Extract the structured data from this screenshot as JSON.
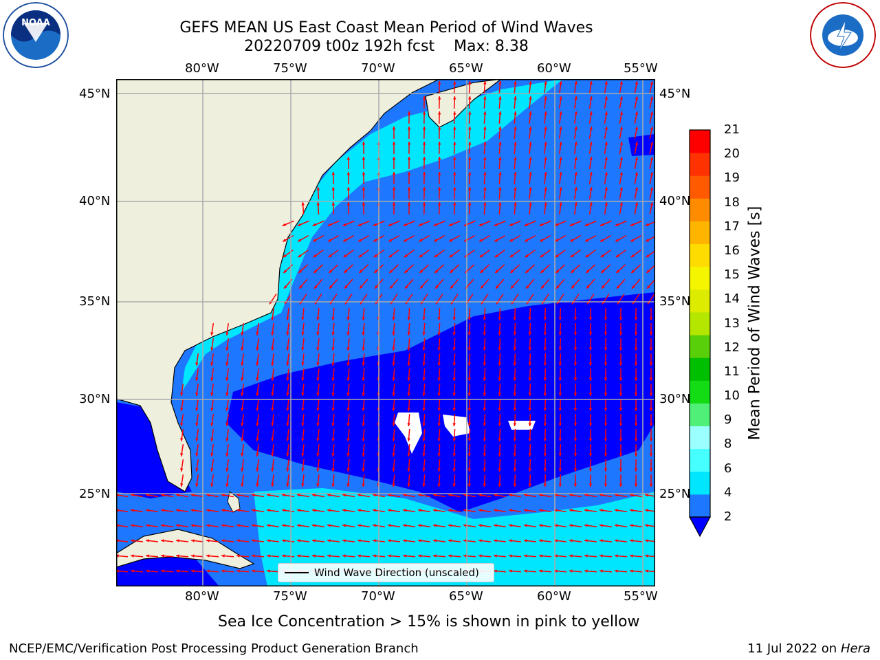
{
  "title": {
    "line1": "GEFS MEAN US East Coast Mean Period of Wind Waves",
    "line2": "20220709 t00z 192h fcst    Max: 8.38"
  },
  "logos": {
    "left_text": "NOAA",
    "right_text": "NATIONAL WEATHER SERVICE",
    "left_icon": "noaa-logo-icon",
    "right_icon": "nws-logo-icon"
  },
  "map": {
    "lon_labels": [
      "80°W",
      "75°W",
      "70°W",
      "65°W",
      "60°W",
      "55°W"
    ],
    "lat_labels": [
      "45°N",
      "40°N",
      "35°N",
      "30°N",
      "25°N"
    ],
    "legend_label": "Wind Wave Direction (unscaled)",
    "arrow_color": "#ff0000",
    "land_color": "#efefde"
  },
  "colorbar": {
    "title": "Mean Period of Wind Waves [s]",
    "ticks": [
      "2",
      "4",
      "6",
      "8",
      "9",
      "10",
      "11",
      "12",
      "13",
      "14",
      "15",
      "16",
      "17",
      "18",
      "19",
      "20",
      "21"
    ],
    "colors": [
      "#0000ff",
      "#1e78ff",
      "#00e6ff",
      "#46ffff",
      "#9bffff",
      "#50f078",
      "#14dc14",
      "#00be00",
      "#58cf08",
      "#b4e600",
      "#dceb00",
      "#f5f500",
      "#ffdc00",
      "#ffb400",
      "#ff8c00",
      "#ff5a00",
      "#ff3200",
      "#ff0000"
    ]
  },
  "notes": {
    "sea_ice": "Sea Ice Concentration > 15% is shown in pink to yellow"
  },
  "footer": {
    "left": "NCEP/EMC/Verification Post Processing Product Generation Branch",
    "right_prefix": "11 Jul 2022 on ",
    "right_machine": "Hera"
  }
}
